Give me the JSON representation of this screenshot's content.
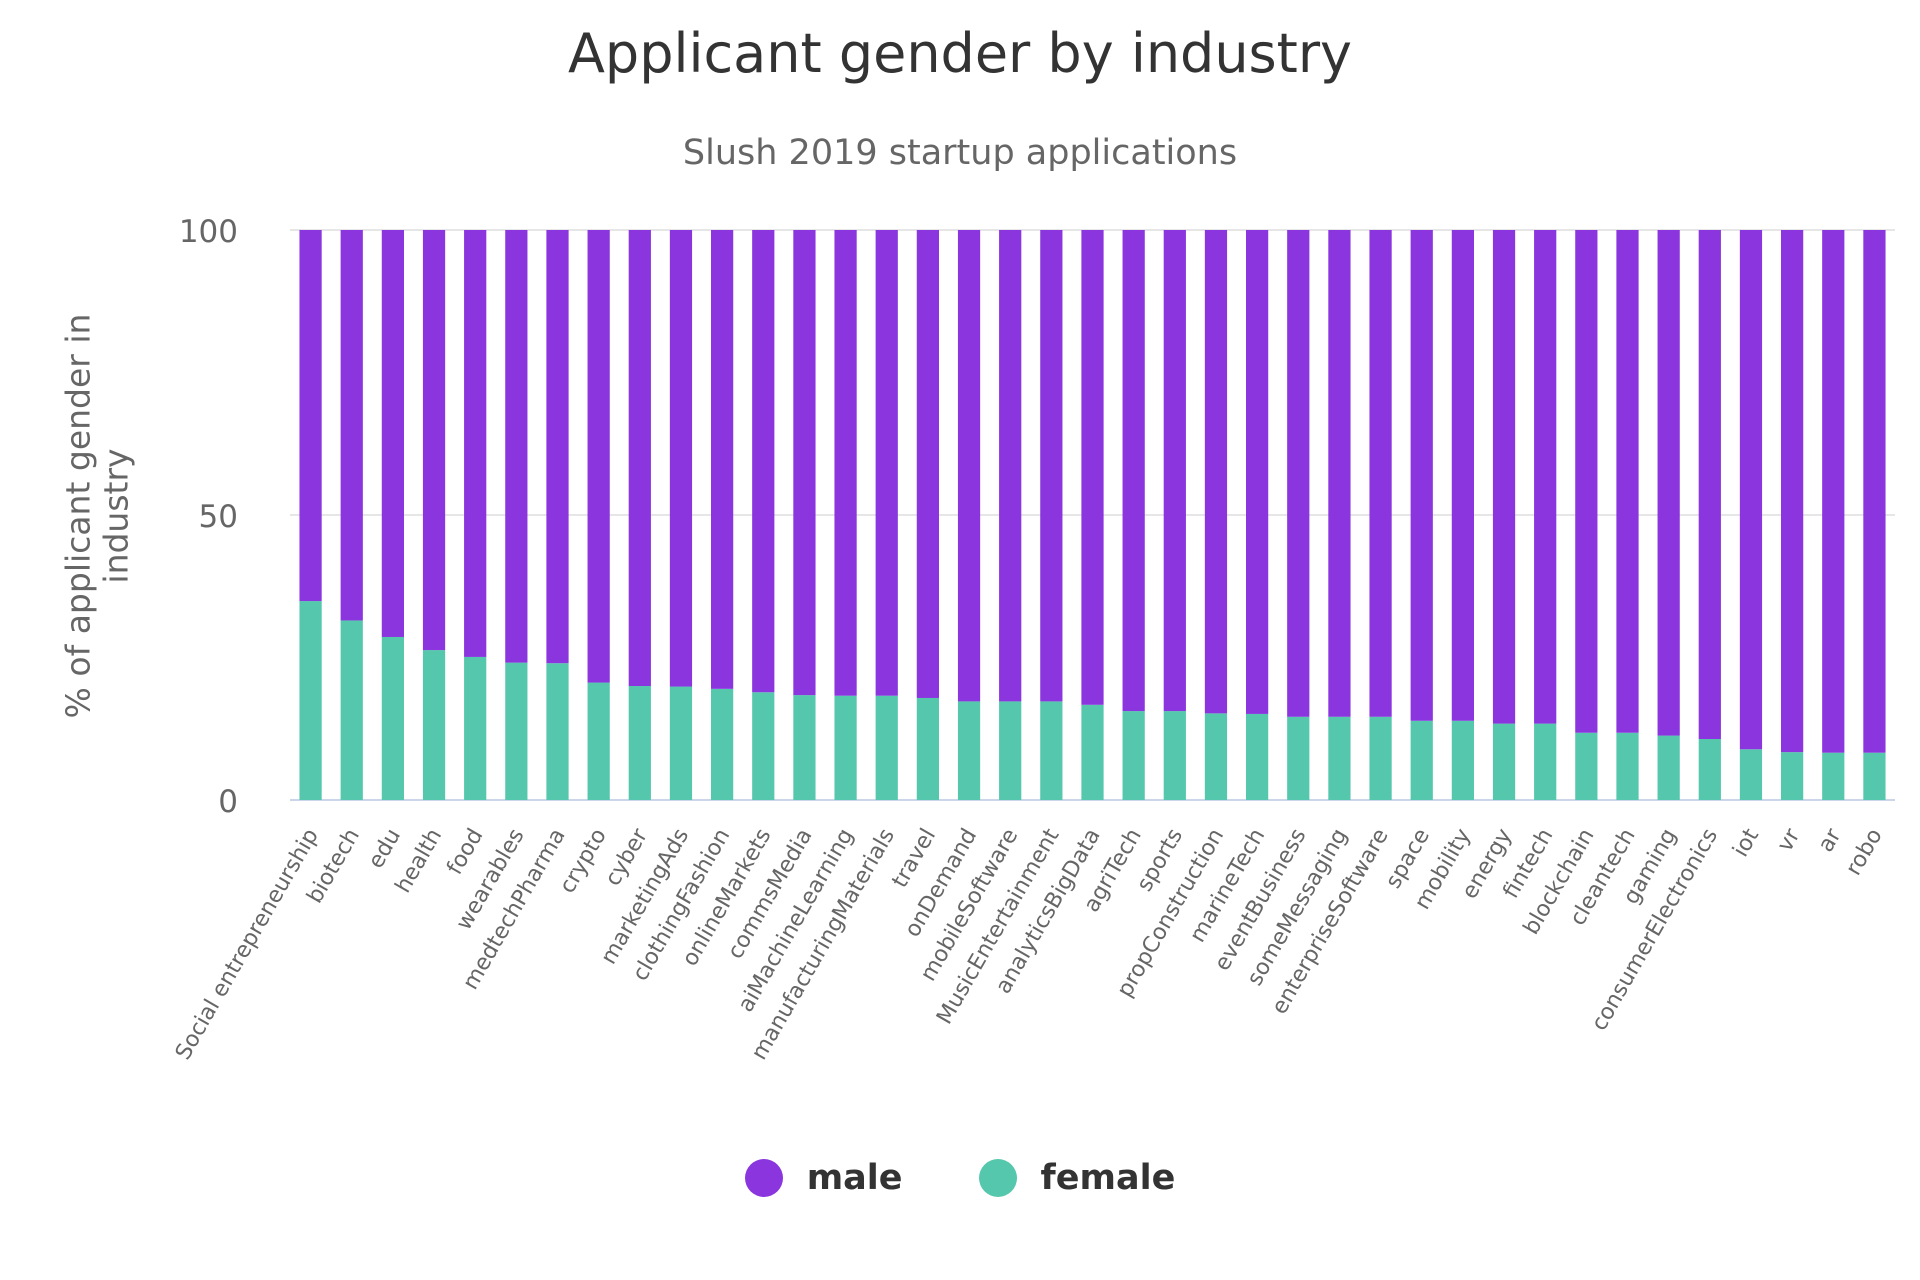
{
  "chart_data": {
    "type": "bar",
    "stacked": true,
    "title": "Applicant gender by industry",
    "subtitle": "Slush 2019 startup applications",
    "xlabel": "",
    "ylabel": "% of applicant gender in industry",
    "ylim": [
      0,
      100
    ],
    "yticks": [
      "0",
      "50",
      "100"
    ],
    "grid": true,
    "legend_position": "bottom",
    "categories": [
      "Social entrepreneurship",
      "biotech",
      "edu",
      "health",
      "food",
      "wearables",
      "medtechPharma",
      "crypto",
      "cyber",
      "marketingAds",
      "clothingFashion",
      "onlineMarkets",
      "commsMedia",
      "aiMachineLearning",
      "manufacturingMaterials",
      "travel",
      "onDemand",
      "mobileSoftware",
      "MusicEntertainment",
      "analyticsBigData",
      "agriTech",
      "sports",
      "propConstruction",
      "marineTech",
      "eventBusiness",
      "someMessaging",
      "enterpriseSoftware",
      "space",
      "mobility",
      "energy",
      "fintech",
      "blockchain",
      "cleantech",
      "gaming",
      "consumerElectronics",
      "iot",
      "vr",
      "ar",
      "robo"
    ],
    "series": [
      {
        "name": "female",
        "color": "#55c7ac",
        "values": [
          34.9,
          31.5,
          28.6,
          26.3,
          25.1,
          24.1,
          24.0,
          20.6,
          20.0,
          19.9,
          19.5,
          18.9,
          18.4,
          18.3,
          18.3,
          17.9,
          17.3,
          17.3,
          17.3,
          16.7,
          15.6,
          15.6,
          15.2,
          15.1,
          14.6,
          14.6,
          14.6,
          13.9,
          13.9,
          13.4,
          13.4,
          11.8,
          11.8,
          11.3,
          10.7,
          8.9,
          8.4,
          8.3,
          8.3
        ]
      },
      {
        "name": "male",
        "color": "#8a35de",
        "values": [
          65.1,
          68.5,
          71.4,
          73.7,
          74.9,
          75.9,
          76.0,
          79.4,
          80.0,
          80.1,
          80.5,
          81.1,
          81.6,
          81.7,
          81.7,
          82.1,
          82.7,
          82.7,
          82.7,
          83.3,
          84.4,
          84.4,
          84.8,
          84.9,
          85.4,
          85.4,
          85.4,
          86.1,
          86.1,
          86.6,
          86.6,
          88.2,
          88.2,
          88.7,
          89.3,
          91.1,
          91.6,
          91.7,
          91.7
        ]
      }
    ],
    "legend": [
      {
        "name": "male",
        "color": "#8a35de"
      },
      {
        "name": "female",
        "color": "#55c7ac"
      }
    ]
  }
}
